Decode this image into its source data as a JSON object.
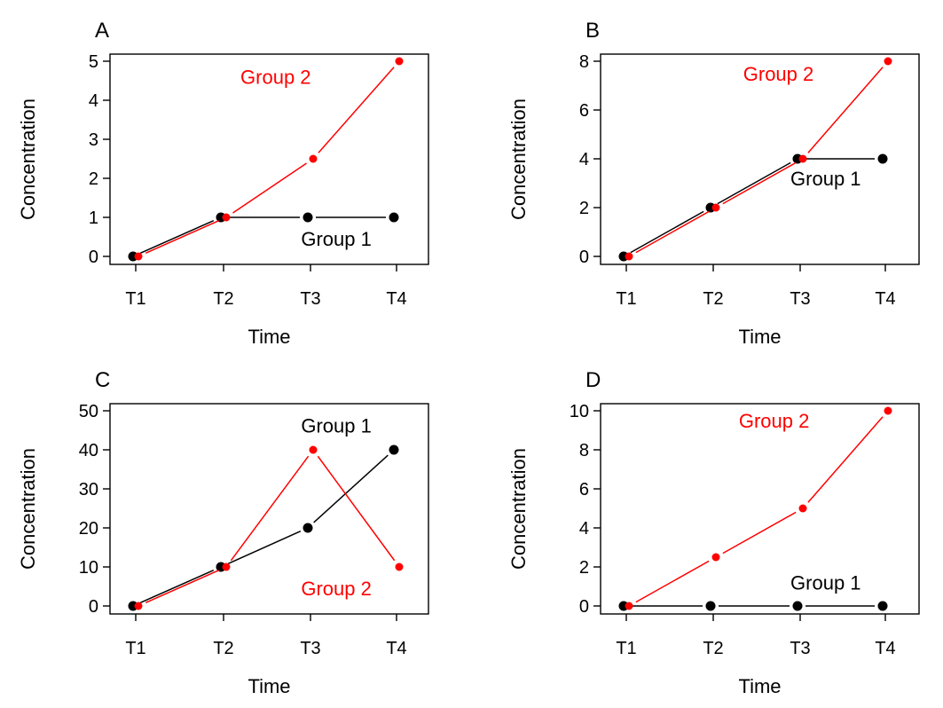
{
  "colors": {
    "group1": "#000000",
    "group2": "#ff0000",
    "axis": "#000000"
  },
  "chart_data": [
    {
      "panel_label": "A",
      "type": "line",
      "categories": [
        "T1",
        "T2",
        "T3",
        "T4"
      ],
      "xlabel": "Time",
      "ylabel": "Concentration",
      "ylim": [
        0,
        5
      ],
      "yticks": [
        0,
        1,
        2,
        3,
        4,
        5
      ],
      "grid": false,
      "series": [
        {
          "name": "Group 1",
          "color": "#000000",
          "values": [
            0,
            1,
            1,
            1
          ]
        },
        {
          "name": "Group 2",
          "color": "#ff0000",
          "values": [
            0,
            1,
            2.5,
            5
          ]
        }
      ],
      "annotations": [
        {
          "text": "Group 1",
          "series": "Group 1",
          "x": "T3.3",
          "y": 0.45
        },
        {
          "text": "Group 2",
          "series": "Group 2",
          "x": "T2.6",
          "y": 4.6
        }
      ]
    },
    {
      "panel_label": "B",
      "type": "line",
      "categories": [
        "T1",
        "T2",
        "T3",
        "T4"
      ],
      "xlabel": "Time",
      "ylabel": "Concentration",
      "ylim": [
        0,
        8
      ],
      "yticks": [
        0,
        2,
        4,
        6,
        8
      ],
      "grid": false,
      "series": [
        {
          "name": "Group 1",
          "color": "#000000",
          "values": [
            0,
            2,
            4,
            4
          ]
        },
        {
          "name": "Group 2",
          "color": "#ff0000",
          "values": [
            0,
            2,
            4,
            8
          ]
        }
      ],
      "annotations": [
        {
          "text": "Group 1",
          "series": "Group 1",
          "x": "T3.3",
          "y": 3.2
        },
        {
          "text": "Group 2",
          "series": "Group 2",
          "x": "T2.75",
          "y": 7.5
        }
      ]
    },
    {
      "panel_label": "C",
      "type": "line",
      "categories": [
        "T1",
        "T2",
        "T3",
        "T4"
      ],
      "xlabel": "Time",
      "ylabel": "Concentration",
      "ylim": [
        0,
        50
      ],
      "yticks": [
        0,
        10,
        20,
        30,
        40,
        50
      ],
      "grid": false,
      "series": [
        {
          "name": "Group 1",
          "color": "#000000",
          "values": [
            0,
            10,
            20,
            40
          ]
        },
        {
          "name": "Group 2",
          "color": "#ff0000",
          "values": [
            0,
            10,
            40,
            10
          ]
        }
      ],
      "annotations": [
        {
          "text": "Group 1",
          "series": "Group 1",
          "x": "T3.3",
          "y": 46.3
        },
        {
          "text": "Group 2",
          "series": "Group 2",
          "x": "T3.3",
          "y": 4.5
        }
      ]
    },
    {
      "panel_label": "D",
      "type": "line",
      "categories": [
        "T1",
        "T2",
        "T3",
        "T4"
      ],
      "xlabel": "Time",
      "ylabel": "Concentration",
      "ylim": [
        0,
        10
      ],
      "yticks": [
        0,
        2,
        4,
        6,
        8,
        10
      ],
      "grid": false,
      "series": [
        {
          "name": "Group 1",
          "color": "#000000",
          "values": [
            0,
            0,
            0,
            0
          ]
        },
        {
          "name": "Group 2",
          "color": "#ff0000",
          "values": [
            0,
            2.5,
            5,
            10
          ]
        }
      ],
      "annotations": [
        {
          "text": "Group 1",
          "series": "Group 1",
          "x": "T3.3",
          "y": 1.2
        },
        {
          "text": "Group 2",
          "series": "Group 2",
          "x": "T2.7",
          "y": 9.5
        }
      ]
    }
  ]
}
